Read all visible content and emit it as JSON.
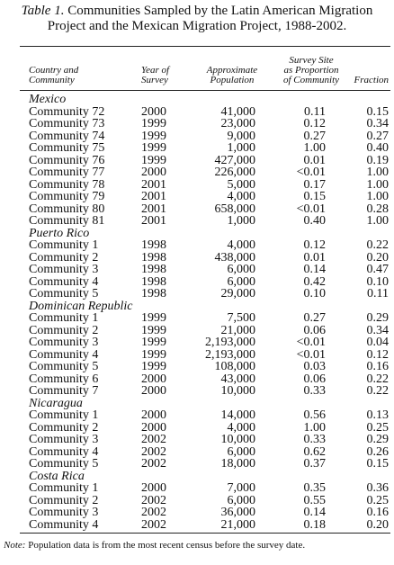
{
  "header": {
    "label": "Table 1.",
    "title": "Communities Sampled by the Latin American Migration Project and the Mexican Migration Project, 1988-2002."
  },
  "table": {
    "columns": [
      [
        "Country and",
        "Community"
      ],
      [
        "Year of",
        "Survey"
      ],
      [
        "Approximate",
        "Population"
      ],
      [
        "Survey Site",
        "as Proportion",
        "of Community"
      ],
      [
        "Fraction"
      ]
    ],
    "groups": [
      {
        "name": "Mexico",
        "rows": [
          [
            "Community 72",
            "2000",
            "41,000",
            "0.11",
            "0.15"
          ],
          [
            "Community 73",
            "1999",
            "23,000",
            "0.12",
            "0.34"
          ],
          [
            "Community 74",
            "1999",
            "9,000",
            "0.27",
            "0.27"
          ],
          [
            "Community 75",
            "1999",
            "1,000",
            "1.00",
            "0.40"
          ],
          [
            "Community 76",
            "1999",
            "427,000",
            "0.01",
            "0.19"
          ],
          [
            "Community 77",
            "2000",
            "226,000",
            "<0.01",
            "1.00"
          ],
          [
            "Community 78",
            "2001",
            "5,000",
            "0.17",
            "1.00"
          ],
          [
            "Community 79",
            "2001",
            "4,000",
            "0.15",
            "1.00"
          ],
          [
            "Community 80",
            "2001",
            "658,000",
            "<0.01",
            "0.28"
          ],
          [
            "Community 81",
            "2001",
            "1,000",
            "0.40",
            "1.00"
          ]
        ]
      },
      {
        "name": "Puerto Rico",
        "rows": [
          [
            "Community 1",
            "1998",
            "4,000",
            "0.12",
            "0.22"
          ],
          [
            "Community 2",
            "1998",
            "438,000",
            "0.01",
            "0.20"
          ],
          [
            "Community 3",
            "1998",
            "6,000",
            "0.14",
            "0.47"
          ],
          [
            "Community 4",
            "1998",
            "6,000",
            "0.42",
            "0.10"
          ],
          [
            "Community 5",
            "1998",
            "29,000",
            "0.10",
            "0.11"
          ]
        ]
      },
      {
        "name": "Dominican Republic",
        "rows": [
          [
            "Community 1",
            "1999",
            "7,500",
            "0.27",
            "0.29"
          ],
          [
            "Community 2",
            "1999",
            "21,000",
            "0.06",
            "0.34"
          ],
          [
            "Community 3",
            "1999",
            "2,193,000",
            "<0.01",
            "0.04"
          ],
          [
            "Community 4",
            "1999",
            "2,193,000",
            "<0.01",
            "0.12"
          ],
          [
            "Community 5",
            "1999",
            "108,000",
            "0.03",
            "0.16"
          ],
          [
            "Community 6",
            "2000",
            "43,000",
            "0.06",
            "0.22"
          ],
          [
            "Community 7",
            "2000",
            "10,000",
            "0.33",
            "0.22"
          ]
        ]
      },
      {
        "name": "Nicaragua",
        "rows": [
          [
            "Community 1",
            "2000",
            "14,000",
            "0.56",
            "0.13"
          ],
          [
            "Community 2",
            "2000",
            "4,000",
            "1.00",
            "0.25"
          ],
          [
            "Community 3",
            "2002",
            "10,000",
            "0.33",
            "0.29"
          ],
          [
            "Community 4",
            "2002",
            "6,000",
            "0.62",
            "0.26"
          ],
          [
            "Community 5",
            "2002",
            "18,000",
            "0.37",
            "0.15"
          ]
        ]
      },
      {
        "name": "Costa Rica",
        "rows": [
          [
            "Community 1",
            "2000",
            "7,000",
            "0.35",
            "0.36"
          ],
          [
            "Community 2",
            "2002",
            "6,000",
            "0.55",
            "0.25"
          ],
          [
            "Community 3",
            "2002",
            "36,000",
            "0.14",
            "0.16"
          ],
          [
            "Community 4",
            "2002",
            "21,000",
            "0.18",
            "0.20"
          ]
        ]
      }
    ]
  },
  "note": {
    "label": "Note:",
    "text": "Population data is from the most recent census before the survey date."
  }
}
